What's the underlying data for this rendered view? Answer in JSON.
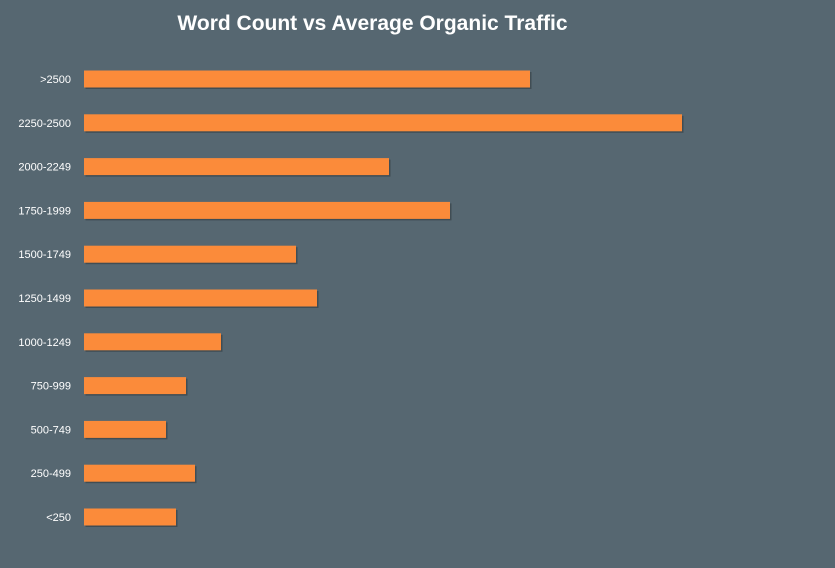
{
  "chart_data": {
    "type": "bar",
    "orientation": "horizontal",
    "title": "Word Count vs Average Organic Traffic",
    "xlabel": "",
    "ylabel": "",
    "categories": [
      ">2500",
      "2250-2500",
      "2000-2249",
      "1750-1999",
      "1500-1749",
      "1250-1499",
      "1000-1249",
      "750-999",
      "500-749",
      "250-499",
      "<250"
    ],
    "values": [
      446,
      598,
      305,
      366,
      212,
      233,
      137,
      102,
      82,
      111,
      92
    ],
    "xlim": [
      0,
      750
    ],
    "grid": false,
    "legend": "none",
    "bar_color": "#fb8b3a",
    "background_color": "#566771",
    "text_color": "#ffffff"
  }
}
